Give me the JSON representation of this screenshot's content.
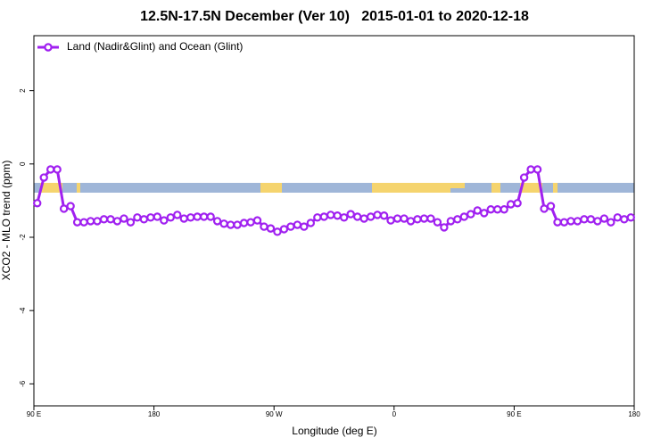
{
  "chart_data": {
    "type": "line",
    "title": "12.5N-17.5N December (Ver 10)   2015-01-01 to 2020-12-18",
    "x_label": "Longitude (deg E)",
    "y_label": "XCO2 - MLO trend (ppm)",
    "xlim": [
      90,
      540
    ],
    "ylim": [
      -6.6,
      3.5
    ],
    "xticks": [
      {
        "value": 90,
        "label": "90 E"
      },
      {
        "value": 180,
        "label": "180"
      },
      {
        "value": 270,
        "label": "90 W"
      },
      {
        "value": 360,
        "label": "0"
      },
      {
        "value": 450,
        "label": "90 E"
      },
      {
        "value": 540,
        "label": "180"
      }
    ],
    "yticks": [
      -6,
      -4,
      -2,
      0,
      2
    ],
    "legend": "top-left",
    "x": [
      92.5,
      97.5,
      102.5,
      107.5,
      112.5,
      117.5,
      122.5,
      127.5,
      132.5,
      137.5,
      142.5,
      147.5,
      152.5,
      157.5,
      162.5,
      167.5,
      172.5,
      177.5,
      182.5,
      187.5,
      192.5,
      197.5,
      202.5,
      207.5,
      212.5,
      217.5,
      222.5,
      227.5,
      232.5,
      237.5,
      242.5,
      247.5,
      252.5,
      257.5,
      262.5,
      267.5,
      272.5,
      277.5,
      282.5,
      287.5,
      292.5,
      297.5,
      302.5,
      307.5,
      312.5,
      317.5,
      322.5,
      327.5,
      332.5,
      337.5,
      342.5,
      347.5,
      352.5,
      357.5,
      362.5,
      367.5,
      372.5,
      377.5,
      382.5,
      387.5,
      392.5,
      397.5,
      402.5,
      407.5,
      412.5,
      417.5,
      422.5,
      427.5,
      432.5,
      437.5,
      442.5,
      447.5,
      452.5,
      457.5,
      462.5,
      467.5,
      472.5,
      477.5,
      482.5,
      487.5,
      492.5,
      497.5,
      502.5,
      507.5,
      512.5,
      517.5,
      522.5,
      527.5,
      532.5,
      537.5
    ],
    "series": [
      {
        "name": "Land (Nadir&Glint) and Ocean (Glint)",
        "color": "#a020f0",
        "values": [
          -1.07,
          -0.37,
          -0.15,
          -0.15,
          -1.22,
          -1.15,
          -1.59,
          -1.59,
          -1.56,
          -1.56,
          -1.51,
          -1.51,
          -1.56,
          -1.49,
          -1.59,
          -1.46,
          -1.51,
          -1.46,
          -1.44,
          -1.54,
          -1.46,
          -1.39,
          -1.49,
          -1.46,
          -1.44,
          -1.44,
          -1.44,
          -1.56,
          -1.63,
          -1.66,
          -1.66,
          -1.61,
          -1.59,
          -1.54,
          -1.71,
          -1.76,
          -1.85,
          -1.78,
          -1.71,
          -1.66,
          -1.71,
          -1.61,
          -1.46,
          -1.44,
          -1.39,
          -1.41,
          -1.46,
          -1.37,
          -1.44,
          -1.49,
          -1.44,
          -1.39,
          -1.41,
          -1.54,
          -1.49,
          -1.49,
          -1.56,
          -1.51,
          -1.49,
          -1.49,
          -1.59,
          -1.73,
          -1.56,
          -1.51,
          -1.44,
          -1.37,
          -1.27,
          -1.34,
          -1.24,
          -1.24,
          -1.24,
          -1.1,
          -1.07,
          -0.37,
          -0.15,
          -0.15,
          -1.22,
          -1.15,
          -1.59,
          -1.59,
          -1.56,
          -1.56,
          -1.51,
          -1.51,
          -1.56,
          -1.49,
          -1.59,
          -1.46,
          -1.51,
          -1.46
        ]
      }
    ]
  }
}
